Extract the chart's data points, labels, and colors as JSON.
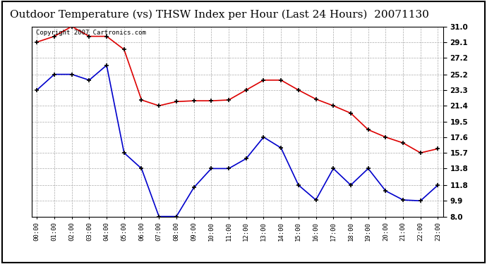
{
  "title": "Outdoor Temperature (vs) THSW Index per Hour (Last 24 Hours)  20071130",
  "copyright_text": "Copyright 2007 Cartronics.com",
  "hours": [
    "00:00",
    "01:00",
    "02:00",
    "03:00",
    "04:00",
    "05:00",
    "06:00",
    "07:00",
    "08:00",
    "09:00",
    "10:00",
    "11:00",
    "12:00",
    "13:00",
    "14:00",
    "15:00",
    "16:00",
    "17:00",
    "18:00",
    "19:00",
    "20:00",
    "21:00",
    "22:00",
    "23:00"
  ],
  "red_data": [
    29.1,
    29.8,
    31.0,
    29.8,
    29.8,
    28.2,
    22.1,
    21.4,
    21.9,
    22.0,
    22.0,
    22.1,
    23.3,
    24.5,
    24.5,
    23.3,
    22.2,
    21.4,
    20.5,
    18.5,
    17.6,
    16.9,
    15.7,
    16.2
  ],
  "blue_data": [
    23.3,
    25.2,
    25.2,
    24.5,
    26.3,
    15.7,
    13.8,
    8.0,
    8.0,
    11.5,
    13.8,
    13.8,
    15.0,
    17.6,
    16.3,
    11.8,
    10.0,
    13.8,
    11.8,
    13.8,
    11.1,
    10.0,
    9.9,
    11.8
  ],
  "y_ticks": [
    8.0,
    9.9,
    11.8,
    13.8,
    15.7,
    17.6,
    19.5,
    21.4,
    23.3,
    25.2,
    27.2,
    29.1,
    31.0
  ],
  "ylim": [
    8.0,
    31.0
  ],
  "background_color": "#ffffff",
  "plot_bg_color": "#ffffff",
  "grid_color": "#aaaaaa",
  "red_color": "#dd0000",
  "blue_color": "#0000cc",
  "title_fontsize": 11,
  "copyright_fontsize": 6.5
}
